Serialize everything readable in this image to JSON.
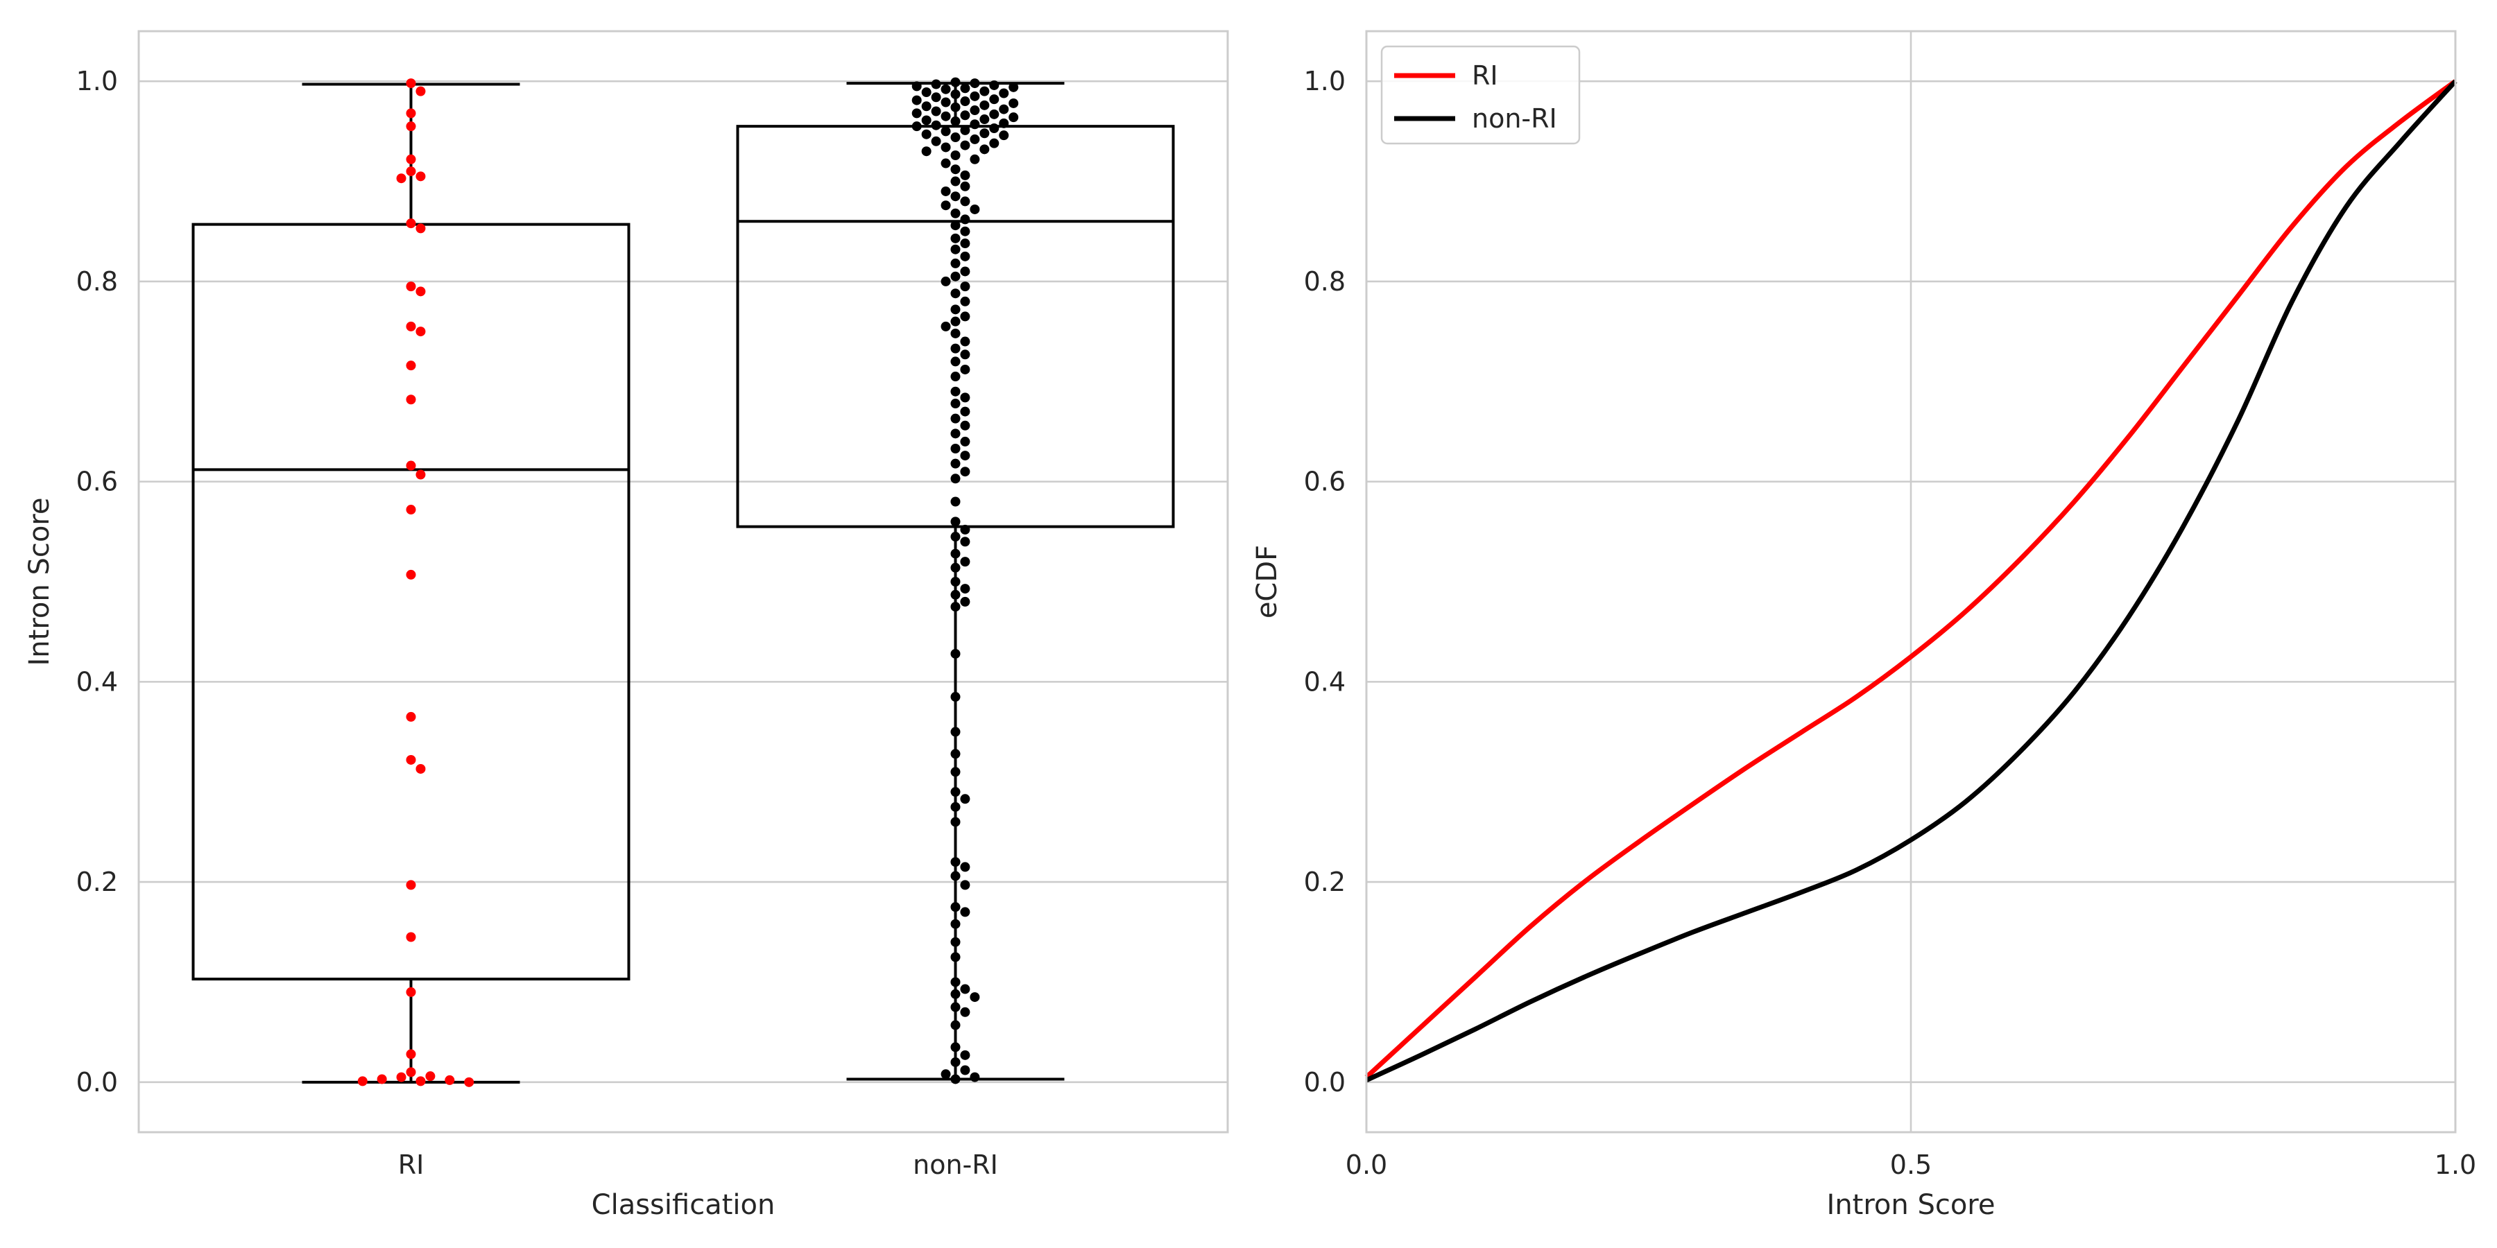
{
  "chart_data": [
    {
      "type": "box+swarm",
      "xlabel": "Classification",
      "ylabel": "Intron Score",
      "ylim": [
        -0.05,
        1.05
      ],
      "yticks": [
        0.0,
        0.2,
        0.4,
        0.6,
        0.8,
        1.0
      ],
      "ytick_labels": [
        "0.0",
        "0.2",
        "0.4",
        "0.6",
        "0.8",
        "1.0"
      ],
      "grid": "horizontal",
      "categories": [
        "RI",
        "non-RI"
      ],
      "boxes": [
        {
          "category": "RI",
          "whisker_low": 0.0,
          "q1": 0.103,
          "median": 0.612,
          "q3": 0.857,
          "whisker_high": 0.997
        },
        {
          "category": "non-RI",
          "whisker_low": 0.003,
          "q1": 0.555,
          "median": 0.86,
          "q3": 0.955,
          "whisker_high": 0.998
        }
      ],
      "points": [
        {
          "category": "RI",
          "color": "#ff0000",
          "values": [
            0.998,
            0.99,
            0.968,
            0.955,
            0.922,
            0.91,
            0.905,
            0.903,
            0.858,
            0.853,
            0.795,
            0.79,
            0.755,
            0.75,
            0.716,
            0.682,
            0.616,
            0.607,
            0.572,
            0.507,
            0.365,
            0.322,
            0.313,
            0.197,
            0.145,
            0.09,
            0.028,
            0.01,
            0.006,
            0.005,
            0.003,
            0.002,
            0.001,
            0.001,
            0.0
          ]
        },
        {
          "category": "non-RI",
          "color": "#000000",
          "values": [
            0.999,
            0.998,
            0.997,
            0.996,
            0.995,
            0.994,
            0.993,
            0.992,
            0.99,
            0.989,
            0.988,
            0.987,
            0.985,
            0.984,
            0.982,
            0.981,
            0.98,
            0.979,
            0.978,
            0.976,
            0.975,
            0.974,
            0.972,
            0.971,
            0.97,
            0.968,
            0.967,
            0.966,
            0.965,
            0.964,
            0.962,
            0.961,
            0.96,
            0.958,
            0.957,
            0.956,
            0.955,
            0.953,
            0.951,
            0.95,
            0.948,
            0.947,
            0.946,
            0.944,
            0.942,
            0.94,
            0.938,
            0.936,
            0.934,
            0.932,
            0.93,
            0.926,
            0.922,
            0.918,
            0.912,
            0.906,
            0.9,
            0.895,
            0.89,
            0.885,
            0.88,
            0.876,
            0.872,
            0.868,
            0.862,
            0.856,
            0.85,
            0.843,
            0.838,
            0.832,
            0.825,
            0.818,
            0.81,
            0.805,
            0.8,
            0.795,
            0.788,
            0.78,
            0.772,
            0.765,
            0.76,
            0.755,
            0.748,
            0.74,
            0.733,
            0.727,
            0.72,
            0.712,
            0.705,
            0.69,
            0.684,
            0.678,
            0.67,
            0.663,
            0.656,
            0.648,
            0.64,
            0.633,
            0.626,
            0.618,
            0.61,
            0.603,
            0.58,
            0.56,
            0.552,
            0.545,
            0.54,
            0.528,
            0.52,
            0.514,
            0.5,
            0.493,
            0.487,
            0.48,
            0.475,
            0.428,
            0.385,
            0.35,
            0.328,
            0.31,
            0.29,
            0.283,
            0.275,
            0.26,
            0.22,
            0.215,
            0.206,
            0.197,
            0.175,
            0.17,
            0.158,
            0.14,
            0.125,
            0.1,
            0.093,
            0.088,
            0.085,
            0.075,
            0.07,
            0.057,
            0.035,
            0.027,
            0.02,
            0.012,
            0.008,
            0.005,
            0.003
          ]
        }
      ]
    },
    {
      "type": "line",
      "xlabel": "Intron Score",
      "ylabel": "eCDF",
      "xlim": [
        0.0,
        1.0
      ],
      "ylim": [
        -0.05,
        1.05
      ],
      "xticks": [
        0.0,
        0.5,
        1.0
      ],
      "xtick_labels": [
        "0.0",
        "0.5",
        "1.0"
      ],
      "yticks": [
        0.0,
        0.2,
        0.4,
        0.6,
        0.8,
        1.0
      ],
      "ytick_labels": [
        "0.0",
        "0.2",
        "0.4",
        "0.6",
        "0.8",
        "1.0"
      ],
      "grid": "both",
      "legend_placement": "top-left",
      "series": [
        {
          "name": "RI",
          "color": "#ff0000",
          "x": [
            0.0,
            0.05,
            0.1,
            0.15,
            0.2,
            0.25,
            0.3,
            0.35,
            0.4,
            0.45,
            0.5,
            0.55,
            0.6,
            0.65,
            0.7,
            0.75,
            0.8,
            0.85,
            0.9,
            0.95,
            1.0
          ],
          "y": [
            0.005,
            0.055,
            0.105,
            0.155,
            0.2,
            0.24,
            0.278,
            0.315,
            0.35,
            0.385,
            0.425,
            0.47,
            0.522,
            0.58,
            0.645,
            0.715,
            0.785,
            0.855,
            0.915,
            0.96,
            1.0
          ]
        },
        {
          "name": "non-RI",
          "color": "#000000",
          "x": [
            0.0,
            0.05,
            0.1,
            0.15,
            0.2,
            0.25,
            0.3,
            0.35,
            0.4,
            0.45,
            0.5,
            0.55,
            0.6,
            0.65,
            0.7,
            0.75,
            0.8,
            0.85,
            0.9,
            0.95,
            1.0
          ],
          "y": [
            0.002,
            0.027,
            0.053,
            0.08,
            0.105,
            0.128,
            0.15,
            0.17,
            0.19,
            0.212,
            0.242,
            0.28,
            0.33,
            0.39,
            0.465,
            0.555,
            0.66,
            0.78,
            0.875,
            0.94,
            1.0
          ]
        }
      ]
    }
  ]
}
